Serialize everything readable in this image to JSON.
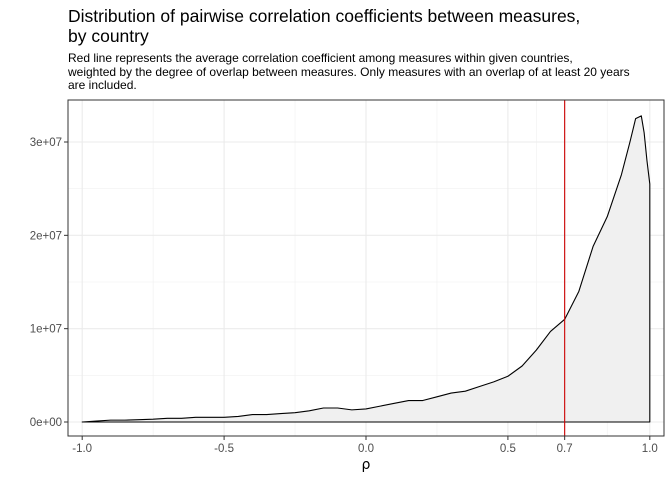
{
  "chart_data": {
    "type": "area",
    "title_lines": [
      "Distribution of pairwise correlation coefficients between measures,",
      "by country"
    ],
    "subtitle_lines": [
      "Red line represents the average correlation coefficient among measures within given countries,",
      "weighted by the degree of overlap between measures. Only measures with an overlap of at least 20 years",
      "are included."
    ],
    "xlabel": "ρ",
    "ylabel": "",
    "xlim": [
      -1.05,
      1.05
    ],
    "ylim": [
      -1500000,
      34500000
    ],
    "x_ticks": [
      -1.0,
      -0.5,
      0.0,
      0.5,
      0.7,
      1.0
    ],
    "x_tick_labels": [
      "-1.0",
      "-0.5",
      "0.0",
      "0.5",
      "0.7",
      "1.0"
    ],
    "y_ticks": [
      0,
      10000000,
      20000000,
      30000000
    ],
    "y_tick_labels": [
      "0e+00",
      "1e+07",
      "2e+07",
      "3e+07"
    ],
    "reference_line": {
      "x": 0.7,
      "color": "#cc0000"
    },
    "fill_color": "#f0f0f0",
    "line_color": "#000000",
    "grid": true,
    "series": [
      {
        "x": [
          -1.0,
          -0.95,
          -0.9,
          -0.85,
          -0.8,
          -0.75,
          -0.7,
          -0.65,
          -0.6,
          -0.55,
          -0.5,
          -0.45,
          -0.4,
          -0.35,
          -0.3,
          -0.25,
          -0.2,
          -0.15,
          -0.1,
          -0.05,
          0.0,
          0.05,
          0.1,
          0.15,
          0.2,
          0.25,
          0.3,
          0.35,
          0.4,
          0.45,
          0.5,
          0.55,
          0.6,
          0.65,
          0.7,
          0.75,
          0.8,
          0.85,
          0.9,
          0.93,
          0.95,
          0.97,
          0.98,
          0.99,
          1.0
        ],
        "y": [
          0,
          100000,
          200000,
          200000,
          250000,
          300000,
          400000,
          400000,
          500000,
          500000,
          500000,
          600000,
          800000,
          800000,
          900000,
          1000000,
          1200000,
          1500000,
          1500000,
          1300000,
          1400000,
          1700000,
          2000000,
          2300000,
          2300000,
          2700000,
          3100000,
          3300000,
          3800000,
          4300000,
          4900000,
          6000000,
          7700000,
          9700000,
          11000000,
          14000000,
          18800000,
          22000000,
          26500000,
          30000000,
          32500000,
          32800000,
          31000000,
          28000000,
          25500000
        ]
      }
    ]
  }
}
